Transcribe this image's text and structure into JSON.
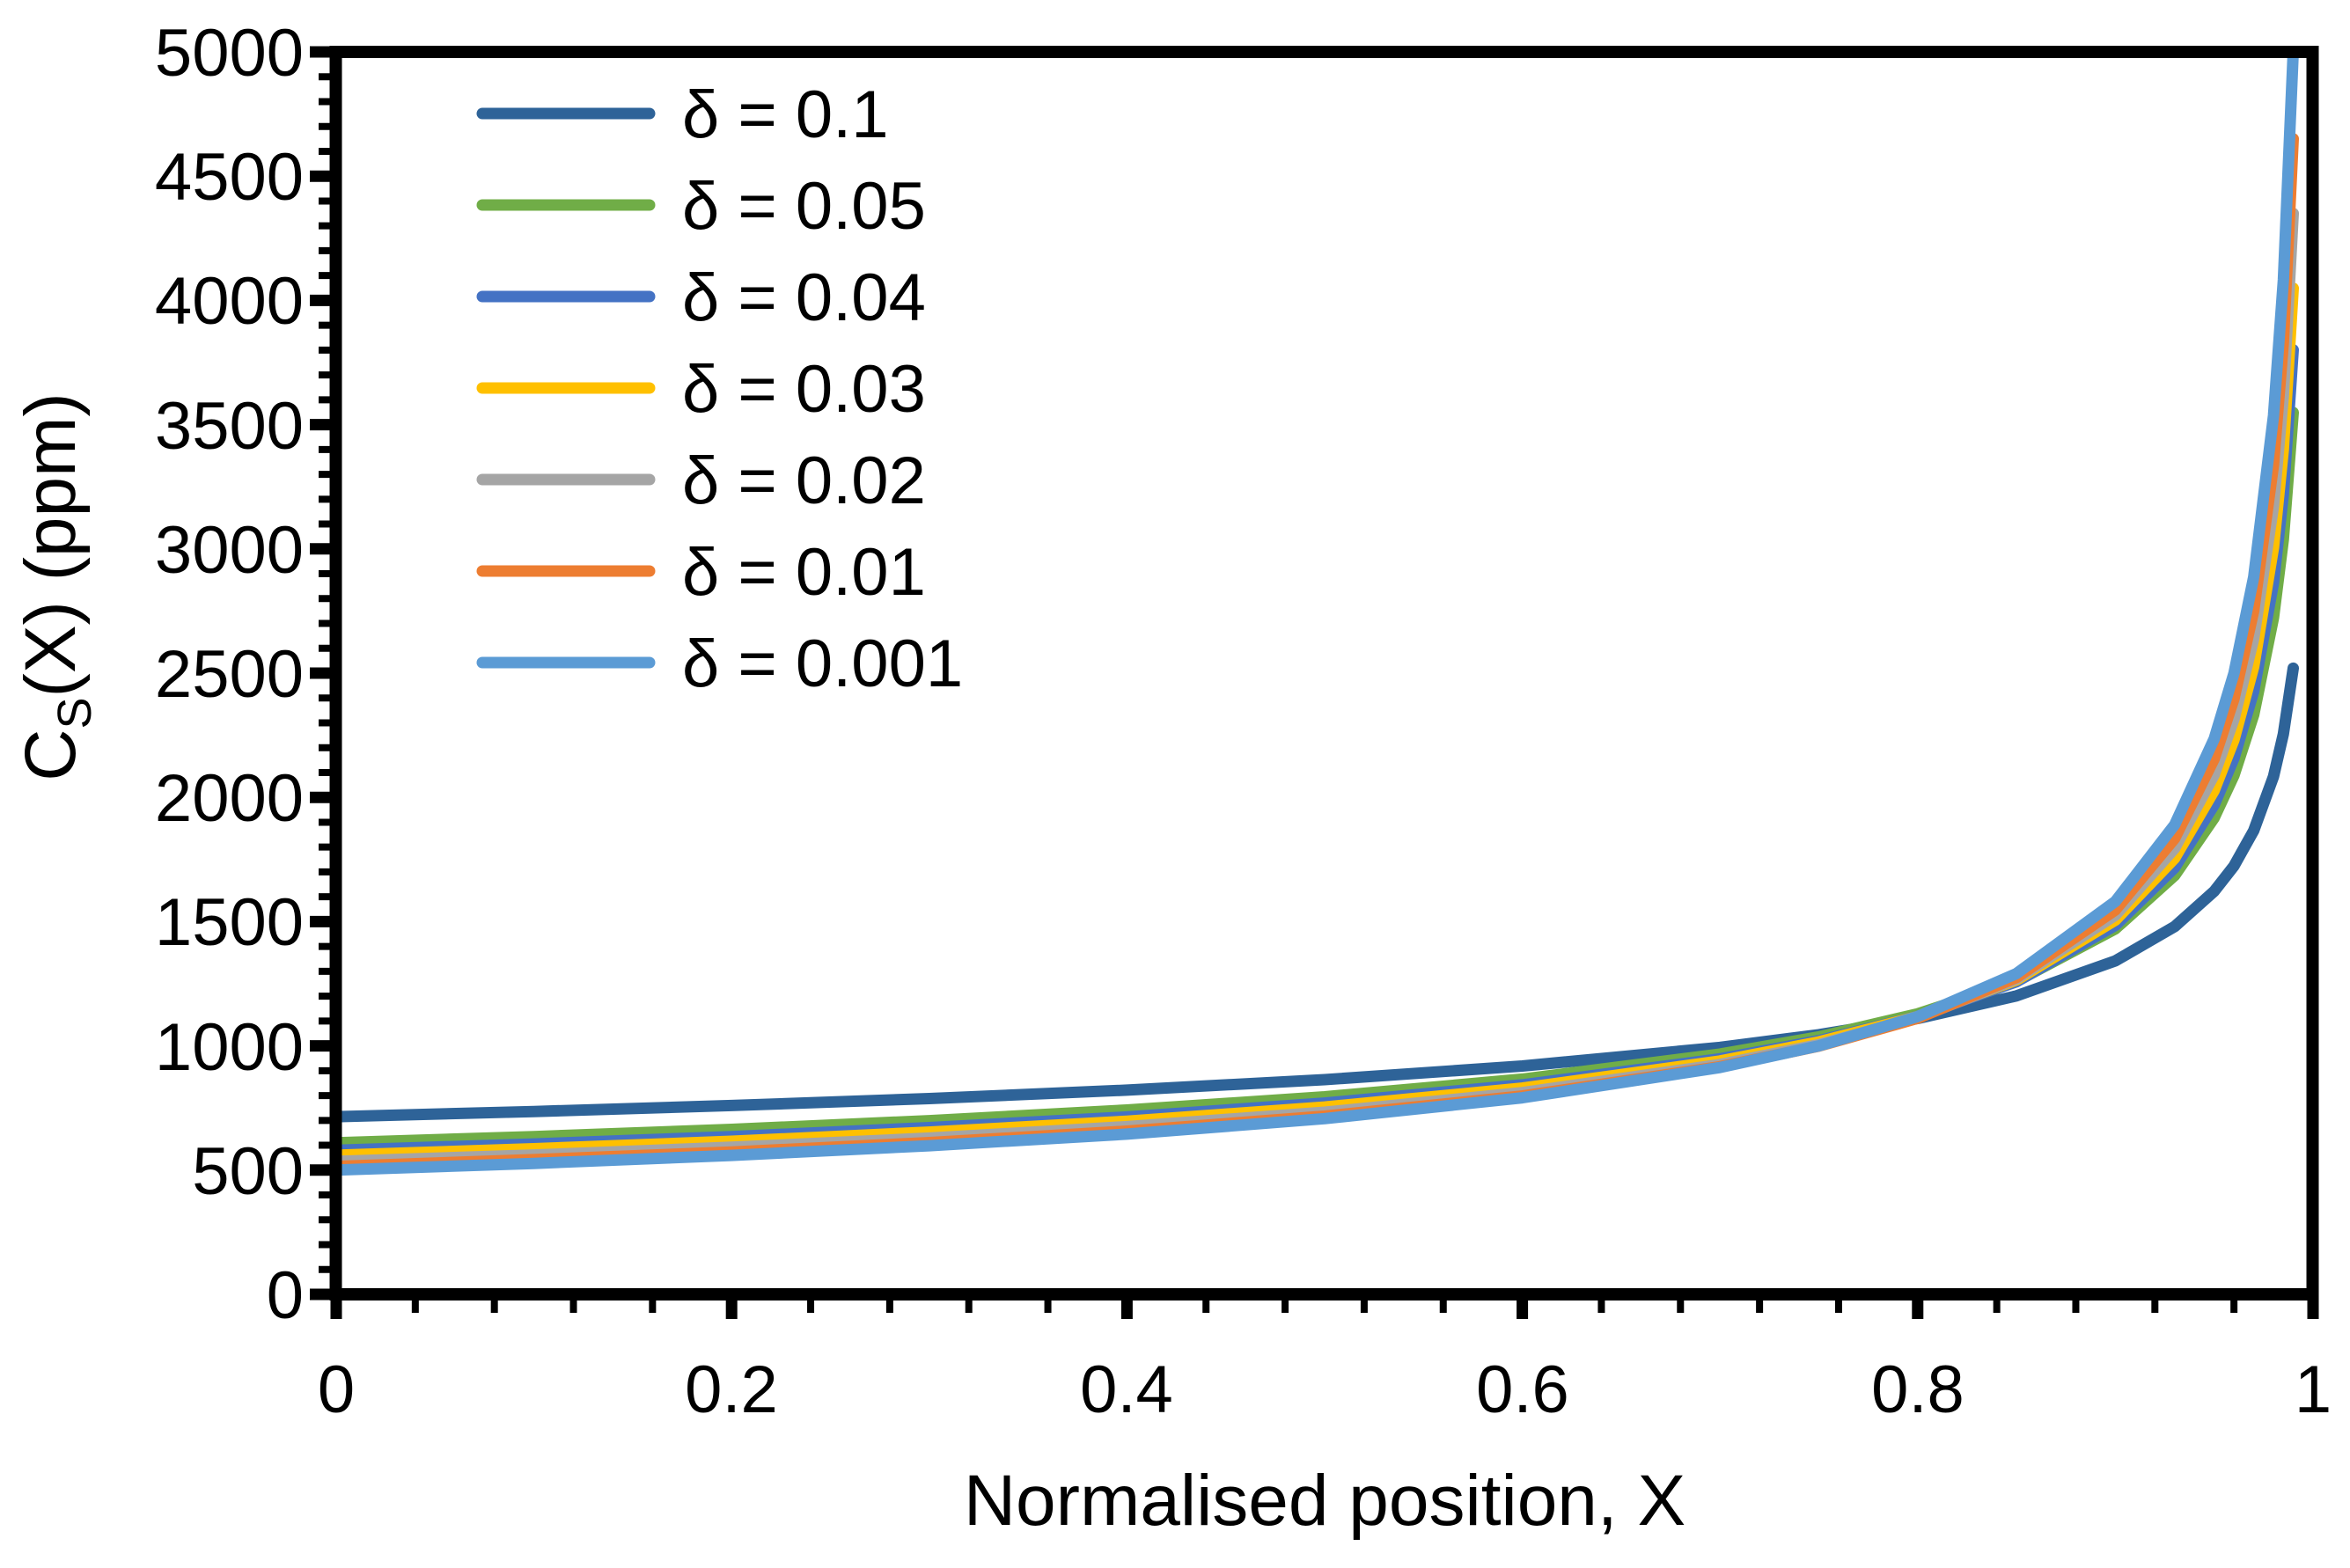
{
  "figure": {
    "background_color": "#FFFFFF",
    "axis_color": "#000000"
  },
  "chart_data": {
    "type": "line",
    "title": "",
    "xlabel": "Normalised position, X",
    "ylabel": "C_S(X) (ppm)",
    "ylabel_parts": {
      "main": "C",
      "sub": "S",
      "rest": "(X) (ppm)"
    },
    "xlim": [
      0,
      1
    ],
    "ylim": [
      0,
      5000
    ],
    "x_major_step": 0.2,
    "x_minor_step": 0.04,
    "y_major_step": 500,
    "y_minor_step": 100,
    "grid": false,
    "legend_position": "inside top-left",
    "x_tick_labels": [
      "0",
      "0.2",
      "0.4",
      "0.6",
      "0.8",
      "1"
    ],
    "y_tick_labels": [
      "0",
      "500",
      "1000",
      "1500",
      "2000",
      "2500",
      "3000",
      "3500",
      "4000",
      "4500",
      "5000"
    ],
    "x": [
      0,
      0.1,
      0.2,
      0.3,
      0.4,
      0.5,
      0.6,
      0.7,
      0.75,
      0.8,
      0.85,
      0.9,
      0.93,
      0.95,
      0.96,
      0.97,
      0.98,
      0.985,
      0.99
    ],
    "series": [
      {
        "label": "δ = 0.1",
        "delta": 0.1,
        "color": "#2E6398",
        "values": [
          715,
          736,
          760,
          788,
          822,
          864,
          919,
          994,
          1045,
          1110,
          1201,
          1342,
          1480,
          1622,
          1724,
          1866,
          2084,
          2255,
          2520
        ]
      },
      {
        "label": "δ = 0.05",
        "delta": 0.05,
        "color": "#70AD47",
        "values": [
          610,
          635,
          664,
          699,
          742,
          795,
          866,
          967,
          1036,
          1129,
          1260,
          1471,
          1686,
          1918,
          2089,
          2332,
          2723,
          3039,
          3549
        ]
      },
      {
        "label": "δ = 0.04",
        "delta": 0.04,
        "color": "#4472C4",
        "values": [
          580,
          605,
          635,
          671,
          714,
          770,
          843,
          948,
          1021,
          1119,
          1258,
          1485,
          1717,
          1970,
          2158,
          2427,
          2864,
          3221,
          3801
        ]
      },
      {
        "label": "δ = 0.03",
        "delta": 0.03,
        "color": "#FFC000",
        "values": [
          560,
          586,
          616,
          653,
          697,
          754,
          830,
          939,
          1016,
          1118,
          1265,
          1506,
          1755,
          2028,
          2232,
          2526,
          3006,
          3402,
          4049
        ]
      },
      {
        "label": "δ = 0.02",
        "delta": 0.02,
        "color": "#A5A5A5",
        "values": [
          535,
          561,
          592,
          629,
          675,
          733,
          812,
          925,
          1005,
          1113,
          1269,
          1526,
          1795,
          2091,
          2315,
          2639,
          3173,
          3617,
          4350
        ]
      },
      {
        "label": "δ = 0.01",
        "delta": 0.01,
        "color": "#ED7D31",
        "values": [
          515,
          542,
          573,
          611,
          657,
          717,
          798,
          916,
          999,
          1111,
          1275,
          1547,
          1835,
          2155,
          2397,
          2751,
          3339,
          3831,
          4650
        ]
      },
      {
        "label": "δ = 0.001",
        "delta": 0.001,
        "color": "#5B9BD5",
        "values": [
          500,
          527,
          559,
          598,
          645,
          707,
          791,
          913,
          1000,
          1118,
          1291,
          1581,
          1890,
          2236,
          2500,
          2887,
          3536,
          4082,
          5000
        ]
      }
    ]
  }
}
